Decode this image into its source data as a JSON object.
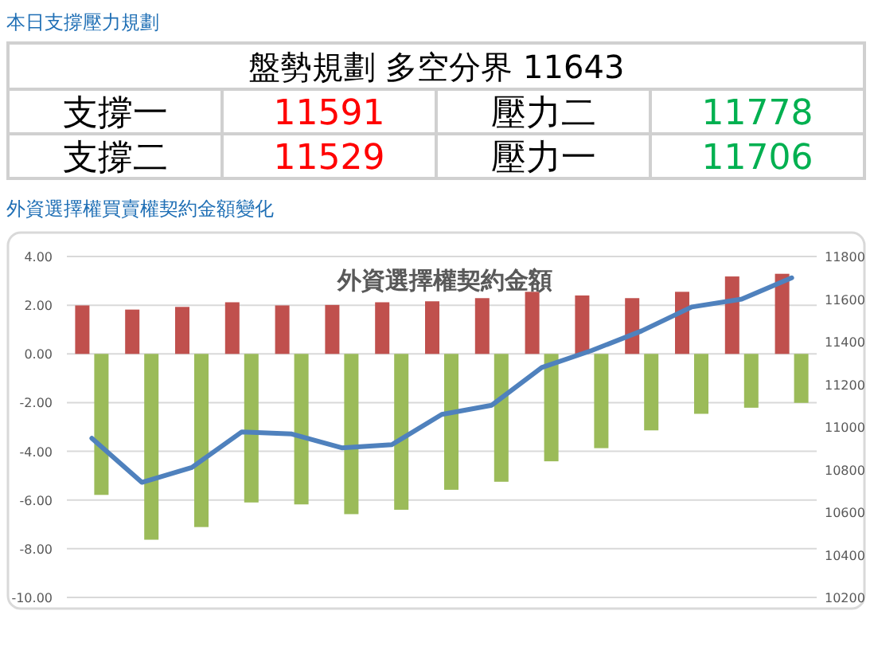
{
  "chart_data": [
    {
      "type": "other",
      "title": "本日支撐壓力規劃",
      "subtitle": "盤勢規劃 多空分界 11643",
      "annotations": [
        "支撐一",
        "11591",
        "壓力二",
        "11778",
        "支撐二",
        "11529",
        "壓力一",
        "11706"
      ]
    },
    {
      "type": "bar",
      "title": "外資選擇權契約金額",
      "annotations": [
        "外資選擇權買賣權契約金額變化"
      ],
      "categories": [
        null,
        null,
        null,
        null,
        null,
        null,
        null,
        null,
        null,
        null,
        null,
        null,
        null,
        null,
        null
      ],
      "series": [
        {
          "type": "bar",
          "color": "#c0504d",
          "values": [
            1.99,
            1.82,
            1.93,
            2.12,
            1.99,
            2.01,
            2.12,
            2.16,
            2.29,
            2.55,
            2.4,
            2.29,
            2.55,
            3.18,
            3.29
          ]
        },
        {
          "type": "bar",
          "color": "#9bbb59",
          "values": [
            -5.79,
            -7.63,
            -7.11,
            -6.1,
            -6.18,
            -6.58,
            -6.4,
            -5.58,
            -5.25,
            -4.41,
            -3.87,
            -3.14,
            -2.46,
            -2.21,
            -2.01
          ]
        },
        {
          "type": "line",
          "axis": "y2",
          "color": "#4f81bd",
          "values": [
            10947,
            10740,
            10810,
            10977,
            10967,
            10902,
            10917,
            11059,
            11102,
            11279,
            11359,
            11451,
            11563,
            11600,
            11700
          ]
        }
      ],
      "ylim": [
        -10,
        4
      ],
      "yticks": [
        {
          "value": 4,
          "label": "4.00"
        },
        {
          "value": 2,
          "label": "2.00"
        },
        {
          "value": 0,
          "label": "0.00"
        },
        {
          "value": -2,
          "label": "-2.00"
        },
        {
          "value": -4,
          "label": "-4.00"
        },
        {
          "value": -6,
          "label": "-6.00"
        },
        {
          "value": -8,
          "label": "-8.00"
        },
        {
          "value": -10,
          "label": "-10.00"
        }
      ],
      "y2lim": [
        10200,
        11800
      ],
      "y2ticks": [
        10200,
        10400,
        10600,
        10800,
        11000,
        11200,
        11400,
        11600,
        11800
      ],
      "grid": "y"
    }
  ]
}
